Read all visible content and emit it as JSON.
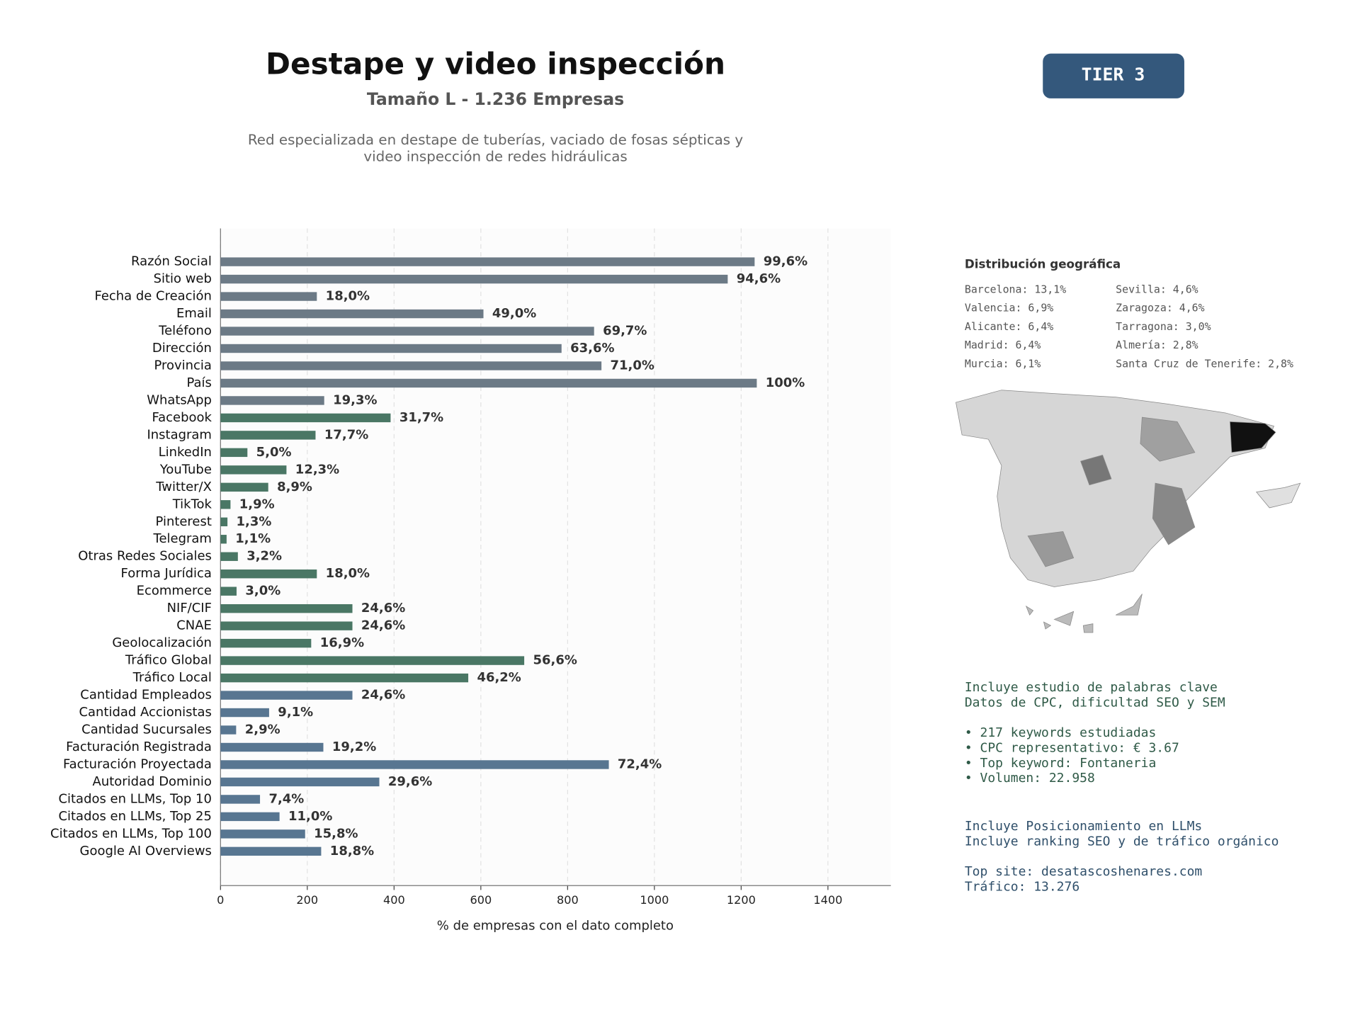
{
  "chart_data": {
    "type": "barh",
    "title": "Destape y video inspección",
    "subtitle": "Tamaño L - 1.236 Empresas",
    "description": [
      "Red especializada en destape de tuberías, vaciado de fosas sépticas y",
      "video inspección de redes hidráulicas"
    ],
    "xlabel": "% de empresas con el dato completo",
    "categories": [
      "Razón Social",
      "Sitio web",
      "Fecha de Creación",
      "Email",
      "Teléfono",
      "Dirección",
      "Provincia",
      "País",
      "WhatsApp",
      "Facebook",
      "Instagram",
      "LinkedIn",
      "YouTube",
      "Twitter/X",
      "TikTok",
      "Pinterest",
      "Telegram",
      "Otras Redes Sociales",
      "Forma Jurídica",
      "Ecommerce",
      "NIF/CIF",
      "CNAE",
      "Geolocalización",
      "Tráfico Global",
      "Tráfico Local",
      "Cantidad Empleados",
      "Cantidad Accionistas",
      "Cantidad Sucursales",
      "Facturación Registrada",
      "Facturación Proyectada",
      "Autoridad Dominio",
      "Citados en LLMs, Top 10",
      "Citados en LLMs, Top 25",
      "Citados en LLMs, Top 100",
      "Google AI Overviews"
    ],
    "values": [
      1231,
      1169,
      222,
      606,
      861,
      786,
      878,
      1236,
      239,
      392,
      219,
      62,
      152,
      110,
      23,
      16,
      14,
      40,
      222,
      37,
      304,
      304,
      209,
      700,
      571,
      304,
      112,
      36,
      237,
      895,
      366,
      91,
      136,
      195,
      232
    ],
    "value_labels": [
      "99,6%",
      "94,6%",
      "18,0%",
      "49,0%",
      "69,7%",
      "63,6%",
      "71,0%",
      "100%",
      "19,3%",
      "31,7%",
      "17,7%",
      "5,0%",
      "12,3%",
      "8,9%",
      "1,9%",
      "1,3%",
      "1,1%",
      "3,2%",
      "18,0%",
      "3,0%",
      "24,6%",
      "24,6%",
      "16,9%",
      "56,6%",
      "46,2%",
      "24,6%",
      "9,1%",
      "2,9%",
      "19,2%",
      "72,4%",
      "29,6%",
      "7,4%",
      "11,0%",
      "15,8%",
      "18,8%"
    ],
    "colors": [
      "#6c7a86",
      "#6c7a86",
      "#6c7a86",
      "#6c7a86",
      "#6c7a86",
      "#6c7a86",
      "#6c7a86",
      "#6c7a86",
      "#6c7a86",
      "#4a7765",
      "#4a7765",
      "#4a7765",
      "#4a7765",
      "#4a7765",
      "#4a7765",
      "#4a7765",
      "#4a7765",
      "#4a7765",
      "#4a7765",
      "#4a7765",
      "#4a7765",
      "#4a7765",
      "#4a7765",
      "#4a7765",
      "#4a7765",
      "#587691",
      "#587691",
      "#587691",
      "#587691",
      "#587691",
      "#587691",
      "#587691",
      "#587691",
      "#587691",
      "#587691"
    ],
    "xlim": [
      0,
      1545
    ],
    "xticks": [
      0,
      200,
      400,
      600,
      800,
      1000,
      1200,
      1400
    ],
    "grid": true
  },
  "badge": "TIER 3",
  "geo": {
    "title": "Distribución geográfica",
    "left": [
      "Barcelona: 13,1%",
      "Valencia: 6,9%",
      "Alicante: 6,4%",
      "Madrid: 6,4%",
      "Murcia: 6,1%"
    ],
    "right": [
      "Sevilla: 4,6%",
      "Zaragoza: 4,6%",
      "Tarragona: 3,0%",
      "Almería: 2,8%",
      "Santa Cruz de Tenerife: 2,8%"
    ]
  },
  "seo": [
    "Incluye estudio de palabras clave",
    "Datos de CPC, dificultad SEO y SEM",
    "",
    "• 217 keywords estudiadas",
    "• CPC representativo: € 3.67",
    "• Top keyword: Fontaneria",
    "• Volumen: 22.958"
  ],
  "llm": [
    "Incluye Posicionamiento en LLMs",
    "Incluye ranking SEO y de tráfico orgánico",
    "",
    "Top site: desatascoshenares.com",
    "Tráfico: 13.276"
  ]
}
